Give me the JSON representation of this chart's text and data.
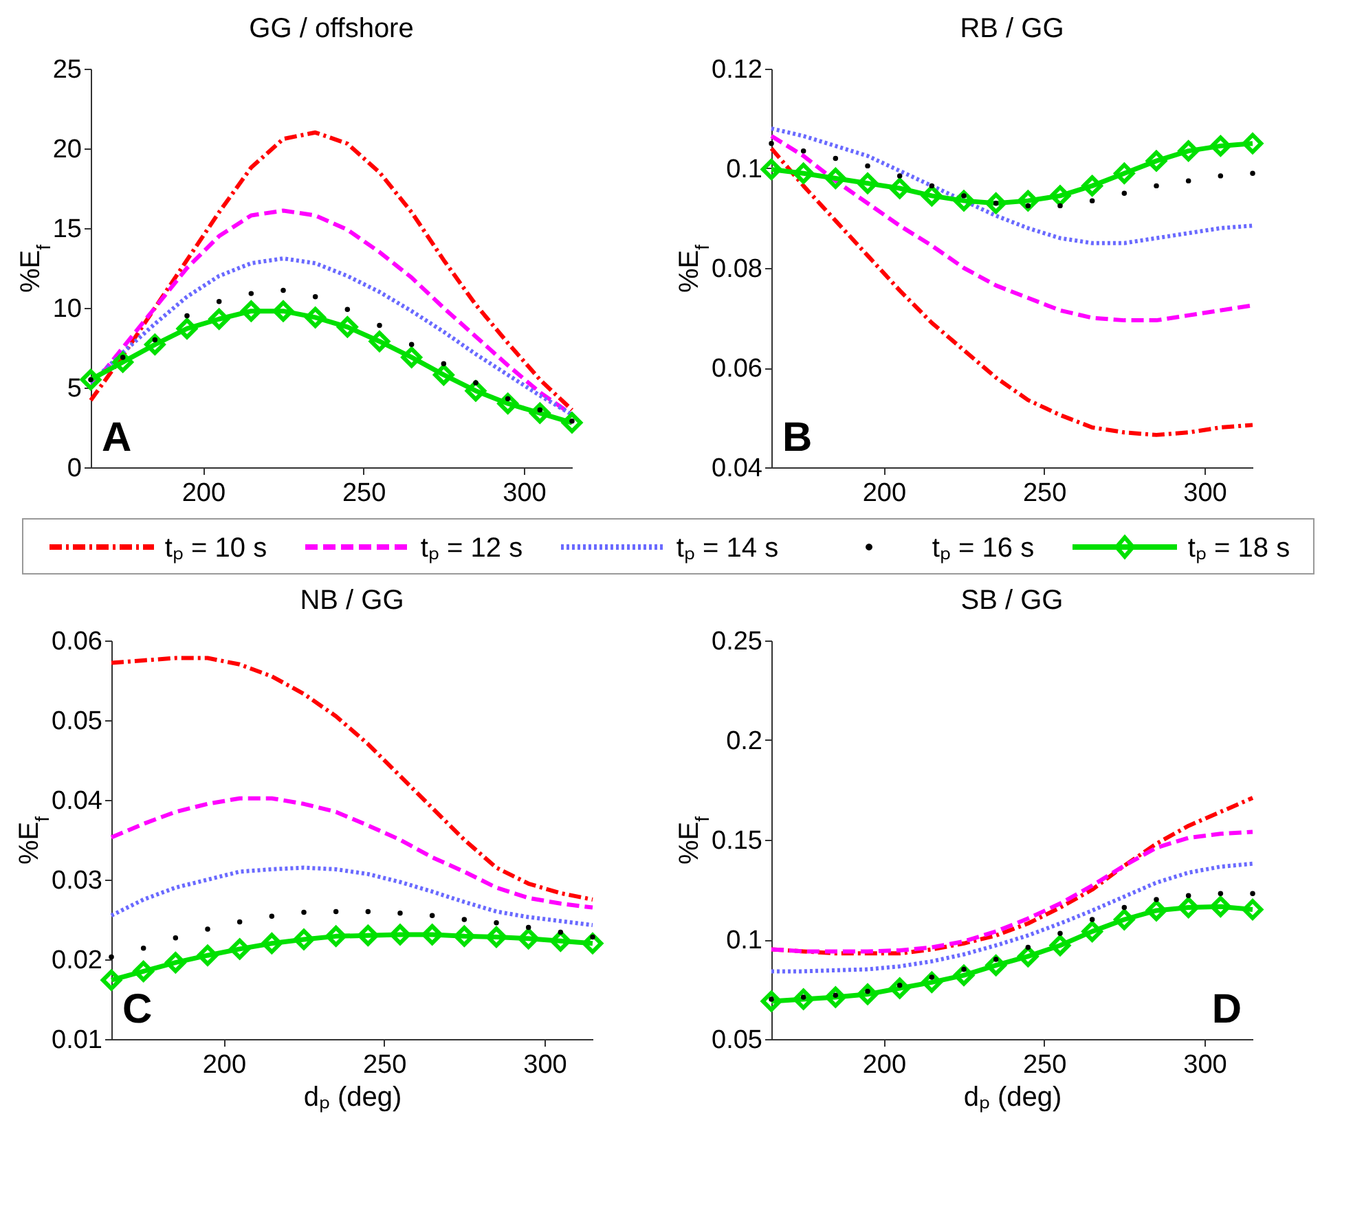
{
  "chart_data": [
    {
      "type": "line",
      "title": "GG / offshore",
      "ylabel": "%E$_{f}$",
      "xlim": [
        165,
        315
      ],
      "xticks": [
        200,
        250,
        300
      ],
      "ylim": [
        0,
        25
      ],
      "yticks": [
        0,
        5,
        10,
        15,
        20,
        25
      ],
      "legend": "bottom",
      "annotations": [
        "A"
      ],
      "x": [
        165,
        175,
        185,
        195,
        205,
        215,
        225,
        235,
        245,
        255,
        265,
        275,
        285,
        295,
        305,
        315
      ],
      "series": [
        {
          "name": "tₚ = 10 s",
          "color": "#ff0000",
          "line_style": "dashdot",
          "values": [
            4.2,
            7,
            10,
            13,
            16,
            18.8,
            20.6,
            21,
            20.3,
            18.5,
            16,
            13,
            10.2,
            7.8,
            5.5,
            3.6
          ]
        },
        {
          "name": "tₚ = 12 s",
          "color": "#ff00ff",
          "line_style": "dashed",
          "values": [
            5,
            7.5,
            10,
            12.5,
            14.5,
            15.8,
            16.1,
            15.8,
            14.9,
            13.5,
            11.9,
            10,
            8.2,
            6.4,
            4.7,
            3.3
          ]
        },
        {
          "name": "tₚ = 14 s",
          "color": "#6a6aff",
          "line_style": "dotted",
          "values": [
            5.3,
            7.2,
            9,
            10.7,
            12,
            12.8,
            13.1,
            12.8,
            12,
            11,
            9.8,
            8.5,
            7.1,
            5.8,
            4.5,
            3.3
          ]
        },
        {
          "name": "tₚ = 16 s",
          "color": "#000000",
          "type": "scatter",
          "marker": "circle",
          "values": [
            5.5,
            6.9,
            8,
            9.5,
            10.4,
            10.9,
            11.1,
            10.7,
            9.9,
            8.9,
            7.7,
            6.5,
            5.3,
            4.3,
            3.6,
            2.9
          ]
        },
        {
          "name": "tₚ = 18 s",
          "color": "#00e000",
          "line_style": "solid",
          "marker": "diamond",
          "values": [
            5.5,
            6.6,
            7.7,
            8.7,
            9.3,
            9.8,
            9.8,
            9.4,
            8.8,
            7.9,
            6.9,
            5.8,
            4.8,
            4,
            3.4,
            2.8
          ]
        }
      ]
    },
    {
      "type": "line",
      "title": "RB / GG",
      "ylabel": "%E$_{f}$",
      "xlim": [
        165,
        315
      ],
      "xticks": [
        200,
        250,
        300
      ],
      "ylim": [
        0.04,
        0.12
      ],
      "yticks": [
        0.04,
        0.06,
        0.08,
        0.1,
        0.12
      ],
      "annotations": [
        "B"
      ],
      "x": [
        165,
        175,
        185,
        195,
        205,
        215,
        225,
        235,
        245,
        255,
        265,
        275,
        285,
        295,
        305,
        315
      ],
      "series": [
        {
          "color": "#ff0000",
          "line_style": "dashdot",
          "values": [
            0.104,
            0.0965,
            0.0895,
            0.0825,
            0.0755,
            0.069,
            0.0635,
            0.058,
            0.0535,
            0.0505,
            0.048,
            0.047,
            0.0465,
            0.047,
            0.048,
            0.0485
          ]
        },
        {
          "color": "#ff00ff",
          "line_style": "dashed",
          "values": [
            0.1065,
            0.1025,
            0.0975,
            0.093,
            0.0885,
            0.0845,
            0.08,
            0.0765,
            0.074,
            0.0715,
            0.07,
            0.0695,
            0.0695,
            0.0705,
            0.0715,
            0.0725
          ]
        },
        {
          "color": "#6a6aff",
          "line_style": "dotted",
          "values": [
            0.108,
            0.1065,
            0.1045,
            0.1025,
            0.0995,
            0.0965,
            0.0935,
            0.0905,
            0.088,
            0.086,
            0.085,
            0.085,
            0.086,
            0.087,
            0.088,
            0.0885
          ]
        },
        {
          "color": "#000000",
          "type": "scatter",
          "marker": "circle",
          "values": [
            0.105,
            0.1035,
            0.102,
            0.1005,
            0.0985,
            0.0965,
            0.0945,
            0.093,
            0.0925,
            0.0925,
            0.0935,
            0.095,
            0.0965,
            0.0975,
            0.0985,
            0.099
          ]
        },
        {
          "color": "#00e000",
          "line_style": "solid",
          "marker": "diamond",
          "values": [
            0.0998,
            0.099,
            0.098,
            0.097,
            0.096,
            0.0945,
            0.0935,
            0.093,
            0.0935,
            0.0945,
            0.0965,
            0.099,
            0.1015,
            0.1035,
            0.1045,
            0.105
          ]
        }
      ]
    },
    {
      "type": "line",
      "title": "NB / GG",
      "xlabel": "dₚ (deg)",
      "ylabel": "%E$_{f}$",
      "xlim": [
        165,
        315
      ],
      "xticks": [
        200,
        250,
        300
      ],
      "ylim": [
        0.01,
        0.06
      ],
      "yticks": [
        0.01,
        0.02,
        0.03,
        0.04,
        0.05,
        0.06
      ],
      "annotations": [
        "C"
      ],
      "x": [
        165,
        175,
        185,
        195,
        205,
        215,
        225,
        235,
        245,
        255,
        265,
        275,
        285,
        295,
        305,
        315
      ],
      "series": [
        {
          "color": "#ff0000",
          "line_style": "dashdot",
          "values": [
            0.0572,
            0.0575,
            0.0578,
            0.0578,
            0.057,
            0.0555,
            0.0533,
            0.0505,
            0.047,
            0.043,
            0.039,
            0.035,
            0.0315,
            0.0295,
            0.0283,
            0.0275
          ]
        },
        {
          "color": "#ff00ff",
          "line_style": "dashed",
          "values": [
            0.0353,
            0.037,
            0.0385,
            0.0395,
            0.0402,
            0.0402,
            0.0395,
            0.0385,
            0.0368,
            0.035,
            0.0328,
            0.031,
            0.029,
            0.0277,
            0.027,
            0.0265
          ]
        },
        {
          "color": "#6a6aff",
          "line_style": "dotted",
          "values": [
            0.0255,
            0.0275,
            0.029,
            0.03,
            0.031,
            0.0313,
            0.0315,
            0.0313,
            0.0307,
            0.0297,
            0.0285,
            0.0272,
            0.026,
            0.0253,
            0.0248,
            0.0243
          ]
        },
        {
          "color": "#000000",
          "type": "scatter",
          "marker": "circle",
          "values": [
            0.0203,
            0.0214,
            0.0227,
            0.0238,
            0.0247,
            0.0254,
            0.0259,
            0.026,
            0.026,
            0.0258,
            0.0255,
            0.025,
            0.0246,
            0.024,
            0.0234,
            0.0228
          ]
        },
        {
          "color": "#00e000",
          "line_style": "solid",
          "marker": "diamond",
          "values": [
            0.0174,
            0.0185,
            0.0196,
            0.0205,
            0.0213,
            0.022,
            0.0225,
            0.0229,
            0.023,
            0.0231,
            0.0231,
            0.0229,
            0.0228,
            0.0226,
            0.0223,
            0.022
          ]
        }
      ]
    },
    {
      "type": "line",
      "title": "SB / GG",
      "xlabel": "dₚ (deg)",
      "ylabel": "%E$_{f}$",
      "xlim": [
        165,
        315
      ],
      "xticks": [
        200,
        250,
        300
      ],
      "ylim": [
        0.05,
        0.25
      ],
      "yticks": [
        0.05,
        0.1,
        0.15,
        0.2,
        0.25
      ],
      "annotations": [
        "D"
      ],
      "x": [
        165,
        175,
        185,
        195,
        205,
        215,
        225,
        235,
        245,
        255,
        265,
        275,
        285,
        295,
        305,
        315
      ],
      "series": [
        {
          "color": "#ff0000",
          "line_style": "dashdot",
          "values": [
            0.095,
            0.094,
            0.093,
            0.093,
            0.093,
            0.095,
            0.098,
            0.102,
            0.108,
            0.116,
            0.125,
            0.137,
            0.148,
            0.157,
            0.164,
            0.171
          ]
        },
        {
          "color": "#ff00ff",
          "line_style": "dashed",
          "values": [
            0.095,
            0.094,
            0.094,
            0.094,
            0.0945,
            0.096,
            0.099,
            0.104,
            0.1105,
            0.118,
            0.127,
            0.137,
            0.146,
            0.151,
            0.153,
            0.154
          ]
        },
        {
          "color": "#6a6aff",
          "line_style": "dotted",
          "values": [
            0.084,
            0.084,
            0.0845,
            0.085,
            0.0865,
            0.089,
            0.0925,
            0.097,
            0.102,
            0.108,
            0.1145,
            0.1215,
            0.1285,
            0.1335,
            0.1365,
            0.138
          ]
        },
        {
          "color": "#000000",
          "type": "scatter",
          "marker": "circle",
          "values": [
            0.07,
            0.071,
            0.072,
            0.074,
            0.077,
            0.081,
            0.085,
            0.09,
            0.096,
            0.103,
            0.11,
            0.116,
            0.12,
            0.122,
            0.123,
            0.123
          ]
        },
        {
          "color": "#00e000",
          "line_style": "solid",
          "marker": "diamond",
          "values": [
            0.069,
            0.07,
            0.071,
            0.0725,
            0.0755,
            0.0785,
            0.082,
            0.087,
            0.0915,
            0.097,
            0.104,
            0.11,
            0.1145,
            0.116,
            0.1165,
            0.115
          ]
        }
      ]
    }
  ]
}
